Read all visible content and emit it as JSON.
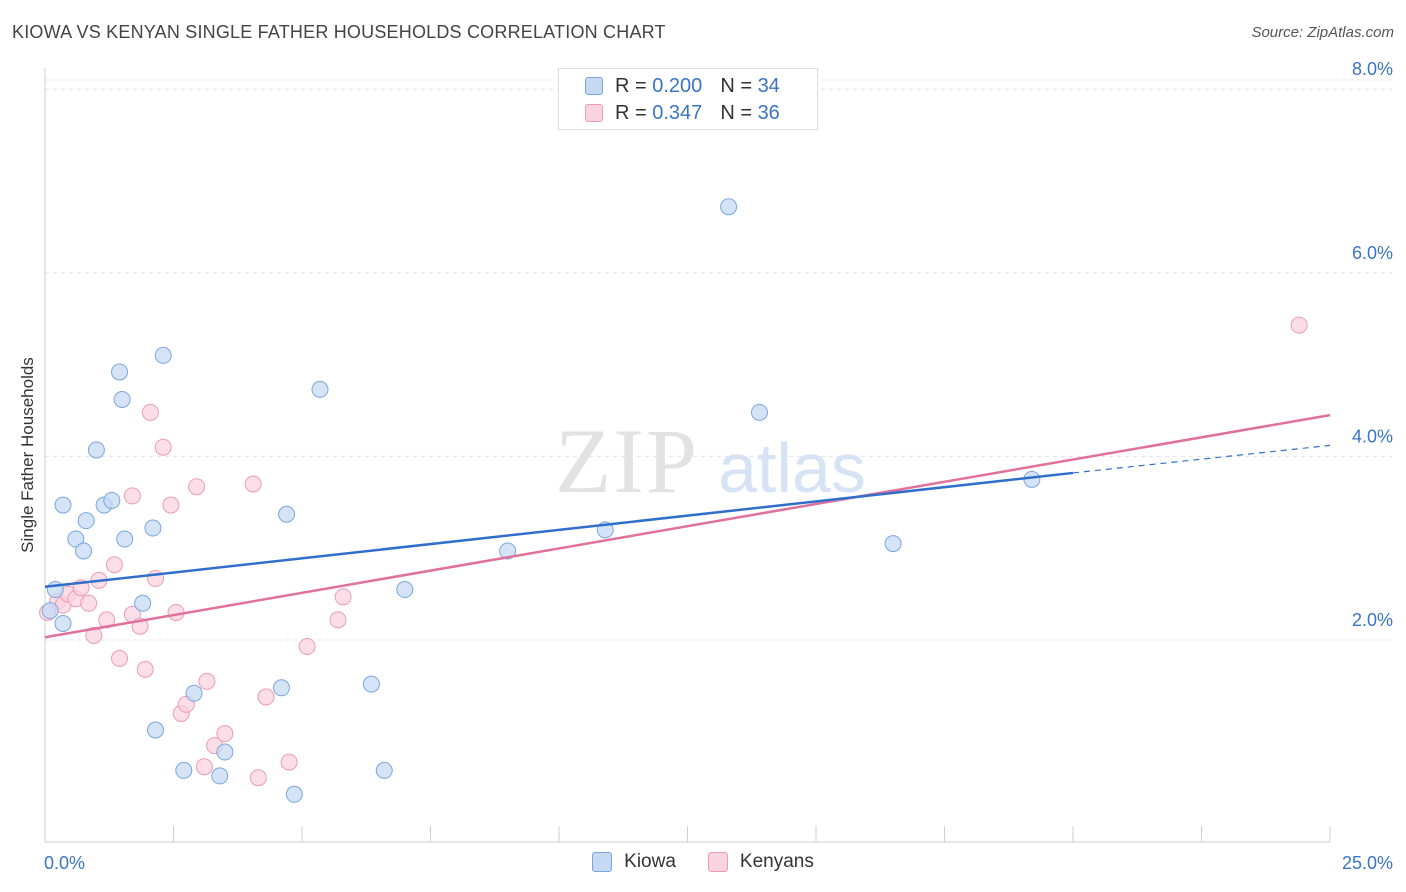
{
  "header": {
    "title": "KIOWA VS KENYAN SINGLE FATHER HOUSEHOLDS CORRELATION CHART",
    "source": "Source: ZipAtlas.com"
  },
  "watermark": {
    "zip": "ZIP",
    "atlas": "atlas"
  },
  "legend": {
    "rows": [
      {
        "r_label": "R =",
        "r_value": "0.200",
        "n_label": "N =",
        "n_value": "34",
        "color": "#a9c8f0"
      },
      {
        "r_label": "R =",
        "r_value": "0.347",
        "n_label": "N =",
        "n_value": "36",
        "color": "#f5b9cb"
      }
    ]
  },
  "colors": {
    "kiowa_fill": "#c5d9f3",
    "kiowa_stroke": "#7aa6df",
    "kiowa_line": "#2f6fcb",
    "kenyans_fill": "#f9d3df",
    "kenyans_stroke": "#ee9bb5",
    "kenyans_line": "#e0719a",
    "tick_text": "#3a74c4"
  },
  "chart_data": {
    "type": "scatter",
    "title": "KIOWA VS KENYAN SINGLE FATHER HOUSEHOLDS CORRELATION CHART",
    "xlabel": "",
    "ylabel": "Single Father Households",
    "xlim": [
      0,
      25
    ],
    "ylim": [
      -0.2,
      8.1
    ],
    "x_tick_labels": [
      "0.0%",
      "25.0%"
    ],
    "y_ticks": [
      2,
      4,
      6,
      8
    ],
    "y_tick_labels": [
      "2.0%",
      "4.0%",
      "6.0%",
      "8.0%"
    ],
    "grid": "horizontal dashed",
    "legend_position": "top-center and bottom",
    "series": [
      {
        "name": "Kiowa",
        "points": [
          [
            0.1,
            2.32
          ],
          [
            0.2,
            2.55
          ],
          [
            0.35,
            2.18
          ],
          [
            0.35,
            3.47
          ],
          [
            0.6,
            3.1
          ],
          [
            0.75,
            2.97
          ],
          [
            0.8,
            3.3
          ],
          [
            1.0,
            4.07
          ],
          [
            1.15,
            3.47
          ],
          [
            1.3,
            3.52
          ],
          [
            1.45,
            4.92
          ],
          [
            1.5,
            4.62
          ],
          [
            1.55,
            3.1
          ],
          [
            1.9,
            2.4
          ],
          [
            2.1,
            3.22
          ],
          [
            2.15,
            1.02
          ],
          [
            2.3,
            5.1
          ],
          [
            2.7,
            0.58
          ],
          [
            2.9,
            1.42
          ],
          [
            3.4,
            0.52
          ],
          [
            3.5,
            0.78
          ],
          [
            4.6,
            1.48
          ],
          [
            4.7,
            3.37
          ],
          [
            4.85,
            0.32
          ],
          [
            5.35,
            4.73
          ],
          [
            6.35,
            1.52
          ],
          [
            6.6,
            0.58
          ],
          [
            7.0,
            2.55
          ],
          [
            9.0,
            2.97
          ],
          [
            10.9,
            3.2
          ],
          [
            13.3,
            6.72
          ],
          [
            13.9,
            4.48
          ],
          [
            16.5,
            3.05
          ],
          [
            19.2,
            3.75
          ]
        ],
        "trend": {
          "x": [
            0.0,
            20.0
          ],
          "y": [
            2.58,
            3.82
          ]
        },
        "trend_extension": {
          "x": [
            20.0,
            25.0
          ],
          "y": [
            3.82,
            4.12
          ]
        }
      },
      {
        "name": "Kenyans",
        "points": [
          [
            0.05,
            2.3
          ],
          [
            0.25,
            2.42
          ],
          [
            0.35,
            2.38
          ],
          [
            0.45,
            2.5
          ],
          [
            0.6,
            2.45
          ],
          [
            0.7,
            2.57
          ],
          [
            0.85,
            2.4
          ],
          [
            0.95,
            2.05
          ],
          [
            1.05,
            2.65
          ],
          [
            1.2,
            2.22
          ],
          [
            1.35,
            2.82
          ],
          [
            1.45,
            1.8
          ],
          [
            1.7,
            2.28
          ],
          [
            1.7,
            3.57
          ],
          [
            1.85,
            2.15
          ],
          [
            1.95,
            1.68
          ],
          [
            2.05,
            4.48
          ],
          [
            2.15,
            2.67
          ],
          [
            2.3,
            4.1
          ],
          [
            2.45,
            3.47
          ],
          [
            2.55,
            2.3
          ],
          [
            2.65,
            1.2
          ],
          [
            2.75,
            1.3
          ],
          [
            2.95,
            3.67
          ],
          [
            3.1,
            0.62
          ],
          [
            3.3,
            0.85
          ],
          [
            3.15,
            1.55
          ],
          [
            3.5,
            0.98
          ],
          [
            4.05,
            3.7
          ],
          [
            4.15,
            0.5
          ],
          [
            4.3,
            1.38
          ],
          [
            4.75,
            0.67
          ],
          [
            5.1,
            1.93
          ],
          [
            5.7,
            2.22
          ],
          [
            5.8,
            2.47
          ],
          [
            24.4,
            5.43
          ]
        ],
        "trend": {
          "x": [
            0.0,
            25.0
          ],
          "y": [
            2.03,
            4.45
          ]
        }
      }
    ]
  }
}
